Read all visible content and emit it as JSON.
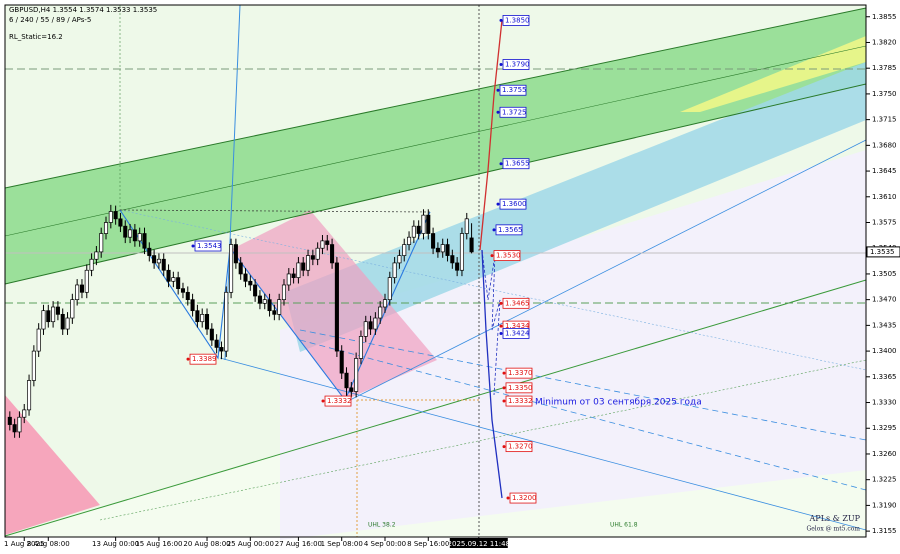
{
  "chart_data": {
    "type": "candlestick",
    "header": "GBPUSD,H4  1.3554 1.3574 1.3533 1.3535",
    "subheader": "6 / 240 / 55 / 89 / APs-5",
    "indicator": "RL_Static=16.2",
    "annotation": "Minimum от 03 сентября 2025 года",
    "watermark": [
      "APLs & ZUP",
      "Gelox @ mt5.com"
    ],
    "channel_labels": [
      "UHL 38.2",
      "UHL 61.8"
    ],
    "current_price": 1.3535,
    "open": [
      1.331,
      1.33,
      1.329,
      1.331,
      1.332,
      1.336,
      1.34,
      1.343,
      1.3455,
      1.344,
      1.346,
      1.345,
      1.343,
      1.3445,
      1.347,
      1.349,
      1.348,
      1.351,
      1.3525,
      1.3535,
      1.356,
      1.3575,
      1.359,
      1.358,
      1.357,
      1.3555,
      1.3565,
      1.355,
      1.356,
      1.354,
      1.353,
      1.352,
      1.3525,
      1.351,
      1.3495,
      1.35,
      1.3485,
      1.348,
      1.347,
      1.3455,
      1.344,
      1.345,
      1.343,
      1.3415,
      1.3405,
      1.34,
      1.348,
      1.3545,
      1.352,
      1.3505,
      1.3495,
      1.349,
      1.3475,
      1.3465,
      1.347,
      1.3455,
      1.345,
      1.347,
      1.349,
      1.3505,
      1.35,
      1.352,
      1.351,
      1.353,
      1.3525,
      1.354,
      1.355,
      1.3545,
      1.352,
      1.34,
      1.337,
      1.335,
      1.3345,
      1.339,
      1.342,
      1.344,
      1.343,
      1.3445,
      1.346,
      1.347,
      1.35,
      1.352,
      1.353,
      1.3545,
      1.3555,
      1.357,
      1.356,
      1.3585,
      1.356,
      1.354,
      1.3535,
      1.3545,
      1.353,
      1.352,
      1.351,
      1.356,
      1.3554
    ],
    "high": [
      1.3318,
      1.3308,
      1.3318,
      1.3328,
      1.3368,
      1.3408,
      1.3438,
      1.3463,
      1.3463,
      1.3468,
      1.3468,
      1.3458,
      1.3453,
      1.3478,
      1.3498,
      1.3498,
      1.3518,
      1.3533,
      1.3543,
      1.3568,
      1.3583,
      1.3599,
      1.3598,
      1.3588,
      1.3578,
      1.3573,
      1.3573,
      1.3568,
      1.3568,
      1.3548,
      1.3538,
      1.3533,
      1.3533,
      1.3518,
      1.3508,
      1.3508,
      1.3493,
      1.3488,
      1.3478,
      1.3463,
      1.3458,
      1.3458,
      1.3438,
      1.3423,
      1.3413,
      1.3488,
      1.3553,
      1.3553,
      1.3528,
      1.3513,
      1.3503,
      1.3498,
      1.3483,
      1.3478,
      1.3478,
      1.3463,
      1.3478,
      1.3498,
      1.3513,
      1.3513,
      1.3528,
      1.3528,
      1.3538,
      1.3538,
      1.3548,
      1.3558,
      1.3558,
      1.3553,
      1.3528,
      1.3408,
      1.3378,
      1.3358,
      1.3398,
      1.3428,
      1.3448,
      1.3448,
      1.3453,
      1.3468,
      1.3478,
      1.3508,
      1.3528,
      1.3538,
      1.3553,
      1.3563,
      1.3578,
      1.3578,
      1.3593,
      1.3593,
      1.3568,
      1.3548,
      1.3553,
      1.3553,
      1.3538,
      1.3528,
      1.3568,
      1.3588,
      1.3574
    ],
    "low": [
      1.3292,
      1.3282,
      1.3282,
      1.3302,
      1.3312,
      1.3352,
      1.3392,
      1.3422,
      1.3432,
      1.3432,
      1.3442,
      1.3422,
      1.3422,
      1.3437,
      1.3462,
      1.3472,
      1.3472,
      1.3502,
      1.3517,
      1.3527,
      1.3552,
      1.3567,
      1.3572,
      1.3562,
      1.3547,
      1.3547,
      1.3542,
      1.3542,
      1.3532,
      1.3522,
      1.3512,
      1.3512,
      1.3502,
      1.3487,
      1.3487,
      1.3477,
      1.3472,
      1.3462,
      1.3447,
      1.3432,
      1.3432,
      1.3422,
      1.3407,
      1.3397,
      1.3389,
      1.3392,
      1.3472,
      1.3512,
      1.3497,
      1.3487,
      1.3482,
      1.3467,
      1.3457,
      1.3457,
      1.3447,
      1.3442,
      1.3442,
      1.3462,
      1.3482,
      1.3492,
      1.3492,
      1.3502,
      1.3502,
      1.3517,
      1.3517,
      1.3532,
      1.3537,
      1.3512,
      1.3392,
      1.3362,
      1.3332,
      1.3337,
      1.3337,
      1.3382,
      1.3412,
      1.3422,
      1.3422,
      1.3437,
      1.3452,
      1.3462,
      1.3492,
      1.3512,
      1.3522,
      1.3537,
      1.3547,
      1.3552,
      1.3552,
      1.3552,
      1.3532,
      1.3527,
      1.3527,
      1.3522,
      1.3512,
      1.3502,
      1.3502,
      1.3552,
      1.3533
    ],
    "close": [
      1.33,
      1.329,
      1.331,
      1.332,
      1.336,
      1.34,
      1.343,
      1.3455,
      1.344,
      1.346,
      1.345,
      1.343,
      1.3445,
      1.347,
      1.349,
      1.348,
      1.351,
      1.3525,
      1.3535,
      1.356,
      1.3575,
      1.359,
      1.358,
      1.357,
      1.3555,
      1.3565,
      1.355,
      1.356,
      1.354,
      1.353,
      1.352,
      1.3525,
      1.351,
      1.3495,
      1.35,
      1.3485,
      1.348,
      1.347,
      1.3455,
      1.344,
      1.345,
      1.343,
      1.3415,
      1.3405,
      1.34,
      1.348,
      1.3545,
      1.352,
      1.3505,
      1.3495,
      1.349,
      1.3475,
      1.3465,
      1.347,
      1.3455,
      1.345,
      1.347,
      1.349,
      1.3505,
      1.35,
      1.352,
      1.351,
      1.353,
      1.3525,
      1.354,
      1.355,
      1.3545,
      1.352,
      1.34,
      1.337,
      1.335,
      1.3345,
      1.339,
      1.342,
      1.344,
      1.343,
      1.3445,
      1.346,
      1.347,
      1.35,
      1.352,
      1.353,
      1.3545,
      1.3555,
      1.357,
      1.356,
      1.3585,
      1.356,
      1.354,
      1.3535,
      1.3545,
      1.353,
      1.352,
      1.351,
      1.356,
      1.358,
      1.3535
    ],
    "levels": {
      "values": [
        1.385,
        1.379,
        1.3755,
        1.3725,
        1.3655,
        1.36,
        1.3565,
        1.3543,
        1.353,
        1.3465,
        1.3434,
        1.3424,
        1.3389,
        1.337,
        1.335,
        1.3332,
        1.3332,
        1.327,
        1.32
      ],
      "value_labels": [
        "1.3850",
        "1.3790",
        "1.3755",
        "1.3725",
        "1.3655",
        "1.3600",
        "1.3565",
        "1.3543",
        "1.3530",
        "1.3465",
        "1.3434",
        "1.3424",
        "1.3389",
        "1.3370",
        "1.3350",
        "1.3332",
        "1.3332",
        "1.3270",
        "1.3200"
      ],
      "colors": [
        "#1010d0",
        "#1010d0",
        "#1010d0",
        "#1010d0",
        "#1010d0",
        "#1010d0",
        "#1010d0",
        "#1010d0",
        "#e01010",
        "#e01010",
        "#e01010",
        "#1010d0",
        "#e01010",
        "#e01010",
        "#e01010",
        "#e01010",
        "#e01010",
        "#e01010",
        "#e01010"
      ]
    },
    "xlim": [
      -1,
      178
    ],
    "ylim": [
      1.3147,
      1.3871
    ],
    "yticks": [
      1.3855,
      {
        "value": 1.382,
        "label": "1.3820"
      },
      1.3785,
      {
        "value": 1.375,
        "label": "1.3750"
      },
      1.3715,
      {
        "value": 1.368,
        "label": "1.3680"
      },
      1.3645,
      {
        "value": 1.361,
        "label": "1.3610"
      },
      1.3575,
      {
        "value": 1.354,
        "label": "1.3540"
      },
      1.3505,
      {
        "value": 1.347,
        "label": "1.3470"
      },
      1.3435,
      {
        "value": 1.34,
        "label": "1.3400"
      },
      1.3365,
      {
        "value": 1.333,
        "label": "1.3330"
      },
      1.3295,
      {
        "value": 1.326,
        "label": "1.3260"
      },
      1.3225,
      {
        "value": 1.319,
        "label": "1.3190"
      },
      1.3155
    ],
    "xticks": [
      {
        "value": 3,
        "label": "1 Aug 2025"
      },
      {
        "value": 8,
        "label": "8 Aug 08:00"
      },
      {
        "value": 22,
        "label": "13 Aug 00:00"
      },
      {
        "value": 31,
        "label": "15 Aug 16:00"
      },
      {
        "value": 41,
        "label": "20 Aug 08:00"
      },
      {
        "value": 50,
        "label": "25 Aug 00:00"
      },
      {
        "value": 60,
        "label": "27 Aug 16:00"
      },
      {
        "value": 69,
        "label": "1 Sep 08:00"
      },
      {
        "value": 78,
        "label": "4 Sep 00:00"
      },
      {
        "value": 87,
        "label": "8 Sep 16:00"
      },
      {
        "value": 97.5,
        "label": "2025.09.12 11:48"
      }
    ],
    "up_color": "#ffffff",
    "down_color": "#000000"
  }
}
